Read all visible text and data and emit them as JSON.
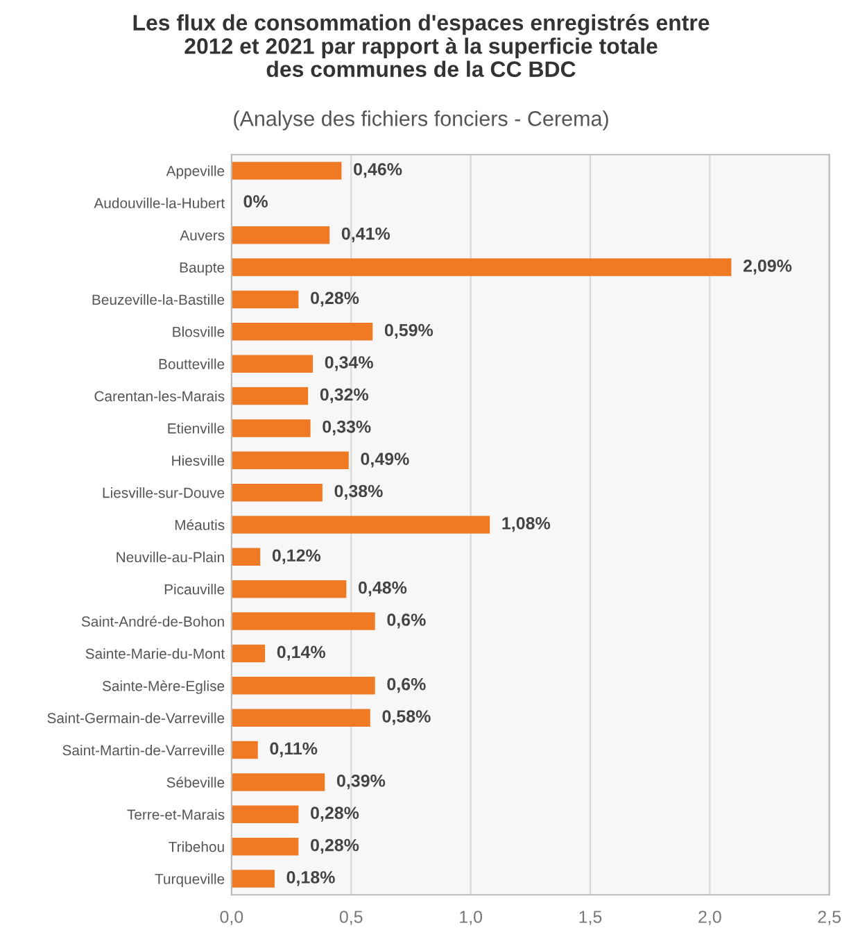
{
  "chart_data": {
    "type": "bar",
    "orientation": "horizontal",
    "title": "Les flux de consommation d'espaces enregistrés entre\n2012 et 2021 par rapport à la superficie totale\ndes communes de la CC BDC",
    "subtitle": "(Analyse des fichiers fonciers - Cerema)",
    "categories": [
      "Appeville",
      "Audouville-la-Hubert",
      "Auvers",
      "Baupte",
      "Beuzeville-la-Bastille",
      "Blosville",
      "Boutteville",
      "Carentan-les-Marais",
      "Etienville",
      "Hiesville",
      "Liesville-sur-Douve",
      "Méautis",
      "Neuville-au-Plain",
      "Picauville",
      "Saint-André-de-Bohon",
      "Sainte-Marie-du-Mont",
      "Sainte-Mère-Eglise",
      "Saint-Germain-de-Varreville",
      "Saint-Martin-de-Varreville",
      "Sébeville",
      "Terre-et-Marais",
      "Tribehou",
      "Turqueville"
    ],
    "values": [
      0.46,
      0,
      0.41,
      2.09,
      0.28,
      0.59,
      0.34,
      0.32,
      0.33,
      0.49,
      0.38,
      1.08,
      0.12,
      0.48,
      0.6,
      0.14,
      0.6,
      0.58,
      0.11,
      0.39,
      0.28,
      0.28,
      0.18
    ],
    "value_labels": [
      "0,46%",
      "0%",
      "0,41%",
      "2,09%",
      "0,28%",
      "0,59%",
      "0,34%",
      "0,32%",
      "0,33%",
      "0,49%",
      "0,38%",
      "1,08%",
      "0,12%",
      "0,48%",
      "0,6%",
      "0,14%",
      "0,6%",
      "0,58%",
      "0,11%",
      "0,39%",
      "0,28%",
      "0,28%",
      "0,18%"
    ],
    "color": "#f07a24",
    "xlim": [
      0,
      2.5
    ],
    "xticks": [
      {
        "value": 0,
        "label": "0,0"
      },
      {
        "value": 0.5,
        "label": "0,5"
      },
      {
        "value": 1,
        "label": "1,0"
      },
      {
        "value": 1.5,
        "label": "1,5"
      },
      {
        "value": 2,
        "label": "2,0"
      },
      {
        "value": 2.5,
        "label": "2,5"
      }
    ],
    "grid": "x"
  }
}
